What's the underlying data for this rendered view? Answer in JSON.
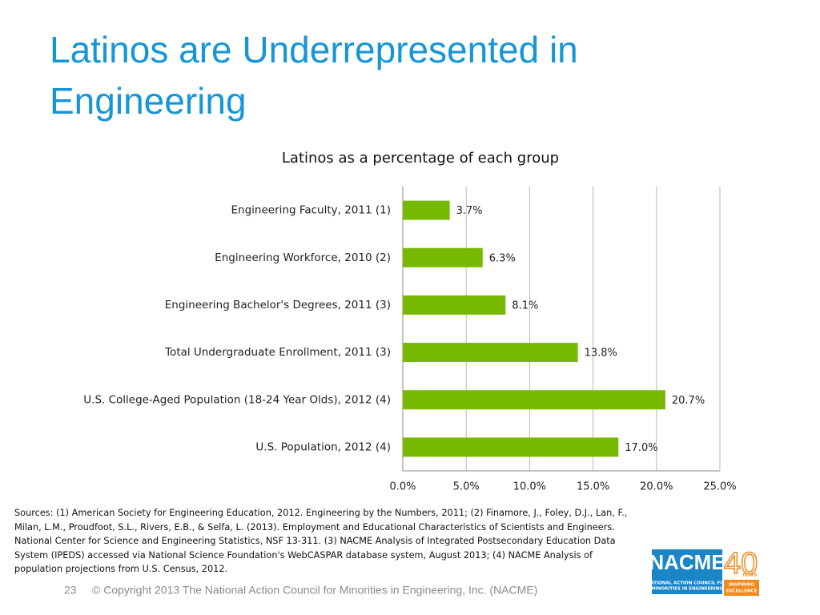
{
  "header": {
    "title_lines": [
      "Latinos are Underrepresented in",
      "Engineering"
    ]
  },
  "chart_data": {
    "type": "bar",
    "orientation": "horizontal",
    "title": "Latinos as a percentage of each group",
    "categories": [
      "Engineering Faculty, 2011 (1)",
      "Engineering Workforce, 2010 (2)",
      "Engineering Bachelor's Degrees, 2011 (3)",
      "Total Undergraduate Enrollment, 2011 (3)",
      "U.S. College-Aged Population (18-24 Year Olds), 2012 (4)",
      "U.S. Population, 2012 (4)"
    ],
    "values": [
      3.7,
      6.3,
      8.1,
      13.8,
      20.7,
      17.0
    ],
    "value_labels": [
      "3.7%",
      "6.3%",
      "8.1%",
      "13.8%",
      "20.7%",
      "17.0%"
    ],
    "color": "#77b900",
    "xlim": [
      0,
      25
    ],
    "xticks": [
      {
        "value": 0,
        "label": "0.0%"
      },
      {
        "value": 5,
        "label": "5.0%"
      },
      {
        "value": 10,
        "label": "10.0%"
      },
      {
        "value": 15,
        "label": "15.0%"
      },
      {
        "value": 20,
        "label": "20.0%"
      },
      {
        "value": 25,
        "label": "25.0%"
      }
    ],
    "grid": true
  },
  "sources": [
    "Sources: (1) American Society for Engineering Education, 2012. Engineering by the Numbers, 2011; (2) Finamore, J., Foley, D.J., Lan, F.,",
    "Milan, L.M., Proudfoot, S.L., Rivers, E.B., & Selfa, L. (2013). Employment and Educational Characteristics of Scientists and Engineers.",
    "National Center for Science and Engineering Statistics, NSF 13-311. (3) NACME Analysis of Integrated Postsecondary Education Data",
    "System (IPEDS) accessed via National Science Foundation's WebCASPAR database system, August 2013; (4) NACME Analysis of",
    "population projections from U.S. Census, 2012."
  ],
  "footer": {
    "page": "23",
    "copyright": "© Copyright 2013 The National Action Council for Minorities in Engineering, Inc. (NACME)"
  },
  "logo": {
    "name": "NACME",
    "number": "40",
    "years": "YEARS",
    "org_lines": [
      "NATIONAL ACTION COUNCIL FOR",
      "MINORITIES IN ENGINEERING"
    ],
    "tagline_lines": [
      "INSPIRING",
      "EXCELLENCE"
    ]
  }
}
